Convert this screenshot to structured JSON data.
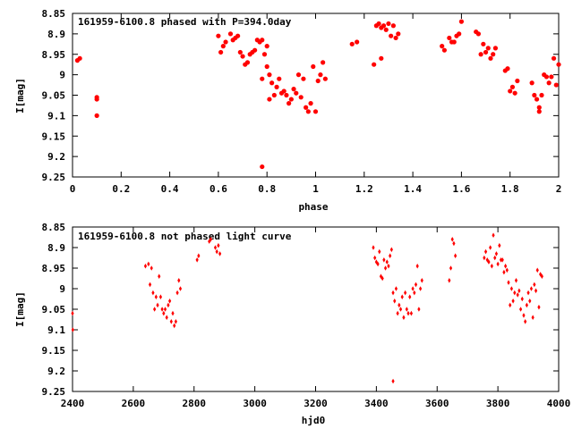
{
  "chart_data": [
    {
      "type": "scatter",
      "title": "161959-6100.8 phased with P=394.0day",
      "xlabel": "phase",
      "ylabel": "I[mag]",
      "xlim": [
        0,
        2
      ],
      "ylim": [
        9.25,
        8.85
      ],
      "y_inverted": true,
      "grid": false,
      "legend": "none",
      "marker": "filled-circle-large",
      "color": "#ff0000",
      "xticks": [
        "0",
        "0.2",
        "0.4",
        "0.6",
        "0.8",
        "1",
        "1.2",
        "1.4",
        "1.6",
        "1.8",
        "2"
      ],
      "yticks": [
        "8.85",
        "8.9",
        "8.95",
        "9",
        "9.05",
        "9.1",
        "9.15",
        "9.2",
        "9.25"
      ],
      "points": [
        [
          0.02,
          8.965
        ],
        [
          0.03,
          8.96
        ],
        [
          0.1,
          9.1
        ],
        [
          0.1,
          9.06
        ],
        [
          0.1,
          9.055
        ],
        [
          0.6,
          8.905
        ],
        [
          0.61,
          8.945
        ],
        [
          0.62,
          8.93
        ],
        [
          0.63,
          8.92
        ],
        [
          0.65,
          8.9
        ],
        [
          0.66,
          8.915
        ],
        [
          0.67,
          8.91
        ],
        [
          0.68,
          8.905
        ],
        [
          0.69,
          8.945
        ],
        [
          0.7,
          8.955
        ],
        [
          0.71,
          8.975
        ],
        [
          0.72,
          8.97
        ],
        [
          0.73,
          8.95
        ],
        [
          0.74,
          8.945
        ],
        [
          0.75,
          8.94
        ],
        [
          0.76,
          8.915
        ],
        [
          0.77,
          8.92
        ],
        [
          0.78,
          8.915
        ],
        [
          0.79,
          8.95
        ],
        [
          0.78,
          9.01
        ],
        [
          0.8,
          8.93
        ],
        [
          0.8,
          8.98
        ],
        [
          0.81,
          9.0
        ],
        [
          0.81,
          9.06
        ],
        [
          0.82,
          9.02
        ],
        [
          0.83,
          9.05
        ],
        [
          0.84,
          9.03
        ],
        [
          0.85,
          9.01
        ],
        [
          0.86,
          9.045
        ],
        [
          0.87,
          9.04
        ],
        [
          0.88,
          9.05
        ],
        [
          0.89,
          9.07
        ],
        [
          0.9,
          9.06
        ],
        [
          0.91,
          9.035
        ],
        [
          0.92,
          9.045
        ],
        [
          0.93,
          9.0
        ],
        [
          0.94,
          9.055
        ],
        [
          0.95,
          9.01
        ],
        [
          0.96,
          9.08
        ],
        [
          0.97,
          9.09
        ],
        [
          0.98,
          9.07
        ],
        [
          0.99,
          8.98
        ],
        [
          1.0,
          9.09
        ],
        [
          1.01,
          9.015
        ],
        [
          1.02,
          9.0
        ],
        [
          1.03,
          8.97
        ],
        [
          1.04,
          9.01
        ],
        [
          0.78,
          9.225
        ],
        [
          1.15,
          8.925
        ],
        [
          1.17,
          8.92
        ],
        [
          1.24,
          8.975
        ],
        [
          1.25,
          8.88
        ],
        [
          1.26,
          8.875
        ],
        [
          1.27,
          8.885
        ],
        [
          1.27,
          8.96
        ],
        [
          1.28,
          8.88
        ],
        [
          1.29,
          8.89
        ],
        [
          1.3,
          8.875
        ],
        [
          1.31,
          8.905
        ],
        [
          1.32,
          8.88
        ],
        [
          1.33,
          8.91
        ],
        [
          1.34,
          8.9
        ],
        [
          1.52,
          8.93
        ],
        [
          1.53,
          8.94
        ],
        [
          1.55,
          8.91
        ],
        [
          1.56,
          8.92
        ],
        [
          1.57,
          8.92
        ],
        [
          1.58,
          8.905
        ],
        [
          1.59,
          8.9
        ],
        [
          1.6,
          8.87
        ],
        [
          1.66,
          8.895
        ],
        [
          1.67,
          8.9
        ],
        [
          1.68,
          8.95
        ],
        [
          1.69,
          8.925
        ],
        [
          1.7,
          8.945
        ],
        [
          1.71,
          8.935
        ],
        [
          1.72,
          8.96
        ],
        [
          1.73,
          8.95
        ],
        [
          1.74,
          8.935
        ],
        [
          1.78,
          8.99
        ],
        [
          1.79,
          8.985
        ],
        [
          1.8,
          9.04
        ],
        [
          1.81,
          9.03
        ],
        [
          1.82,
          9.045
        ],
        [
          1.83,
          9.015
        ],
        [
          1.89,
          9.02
        ],
        [
          1.9,
          9.05
        ],
        [
          1.91,
          9.06
        ],
        [
          1.92,
          9.08
        ],
        [
          1.92,
          9.09
        ],
        [
          1.93,
          9.05
        ],
        [
          1.94,
          9.0
        ],
        [
          1.95,
          9.005
        ],
        [
          1.96,
          9.02
        ],
        [
          1.97,
          9.005
        ],
        [
          1.98,
          8.96
        ],
        [
          1.99,
          9.025
        ],
        [
          2.0,
          8.975
        ]
      ]
    },
    {
      "type": "scatter",
      "title": "161959-6100.8 not phased light curve",
      "xlabel": "hjd0",
      "ylabel": "I[mag]",
      "xlim": [
        2400,
        4000
      ],
      "ylim": [
        9.25,
        8.85
      ],
      "y_inverted": true,
      "grid": false,
      "legend": "none",
      "marker": "diamond-small",
      "color": "#ff0000",
      "xticks": [
        "2400",
        "2600",
        "2800",
        "3000",
        "3200",
        "3400",
        "3600",
        "3800",
        "4000"
      ],
      "yticks": [
        "8.85",
        "8.9",
        "8.95",
        "9",
        "9.05",
        "9.1",
        "9.15",
        "9.2",
        "9.25"
      ],
      "points": [
        [
          2400,
          9.06
        ],
        [
          2401,
          9.1
        ],
        [
          2640,
          8.945
        ],
        [
          2650,
          8.94
        ],
        [
          2655,
          8.99
        ],
        [
          2660,
          8.95
        ],
        [
          2665,
          9.01
        ],
        [
          2670,
          9.05
        ],
        [
          2675,
          9.02
        ],
        [
          2680,
          9.04
        ],
        [
          2685,
          8.97
        ],
        [
          2690,
          9.02
        ],
        [
          2695,
          9.05
        ],
        [
          2700,
          9.06
        ],
        [
          2705,
          9.05
        ],
        [
          2710,
          9.07
        ],
        [
          2715,
          9.04
        ],
        [
          2720,
          9.03
        ],
        [
          2725,
          9.08
        ],
        [
          2730,
          9.06
        ],
        [
          2735,
          9.09
        ],
        [
          2740,
          9.08
        ],
        [
          2745,
          9.01
        ],
        [
          2750,
          8.98
        ],
        [
          2755,
          9.0
        ],
        [
          2810,
          8.93
        ],
        [
          2815,
          8.92
        ],
        [
          2850,
          8.885
        ],
        [
          2855,
          8.88
        ],
        [
          2870,
          8.9
        ],
        [
          2875,
          8.91
        ],
        [
          2880,
          8.895
        ],
        [
          2885,
          8.915
        ],
        [
          3390,
          8.9
        ],
        [
          3395,
          8.925
        ],
        [
          3400,
          8.935
        ],
        [
          3405,
          8.94
        ],
        [
          3410,
          8.91
        ],
        [
          3415,
          8.97
        ],
        [
          3420,
          8.975
        ],
        [
          3425,
          8.93
        ],
        [
          3430,
          8.95
        ],
        [
          3435,
          8.935
        ],
        [
          3440,
          8.945
        ],
        [
          3445,
          8.92
        ],
        [
          3450,
          8.905
        ],
        [
          3455,
          9.01
        ],
        [
          3460,
          9.03
        ],
        [
          3465,
          9.0
        ],
        [
          3470,
          9.06
        ],
        [
          3475,
          9.04
        ],
        [
          3480,
          9.05
        ],
        [
          3485,
          9.02
        ],
        [
          3490,
          9.07
        ],
        [
          3495,
          9.01
        ],
        [
          3500,
          9.05
        ],
        [
          3505,
          9.06
        ],
        [
          3510,
          9.02
        ],
        [
          3515,
          9.06
        ],
        [
          3520,
          9.0
        ],
        [
          3525,
          9.01
        ],
        [
          3530,
          8.99
        ],
        [
          3535,
          8.945
        ],
        [
          3540,
          9.05
        ],
        [
          3545,
          9.0
        ],
        [
          3550,
          8.98
        ],
        [
          3455,
          9.225
        ],
        [
          3640,
          8.98
        ],
        [
          3645,
          8.95
        ],
        [
          3650,
          8.88
        ],
        [
          3655,
          8.89
        ],
        [
          3660,
          8.92
        ],
        [
          3755,
          8.925
        ],
        [
          3760,
          8.91
        ],
        [
          3765,
          8.93
        ],
        [
          3770,
          8.935
        ],
        [
          3775,
          8.9
        ],
        [
          3780,
          8.945
        ],
        [
          3785,
          8.87
        ],
        [
          3790,
          8.925
        ],
        [
          3795,
          8.915
        ],
        [
          3800,
          8.94
        ],
        [
          3805,
          8.895
        ],
        [
          3810,
          8.93
        ],
        [
          3815,
          8.93
        ],
        [
          3820,
          8.96
        ],
        [
          3825,
          8.945
        ],
        [
          3830,
          8.955
        ],
        [
          3835,
          8.985
        ],
        [
          3840,
          9.04
        ],
        [
          3845,
          9.0
        ],
        [
          3850,
          9.03
        ],
        [
          3855,
          9.01
        ],
        [
          3860,
          8.98
        ],
        [
          3865,
          9.015
        ],
        [
          3870,
          9.005
        ],
        [
          3875,
          9.05
        ],
        [
          3880,
          9.025
        ],
        [
          3885,
          9.065
        ],
        [
          3890,
          9.08
        ],
        [
          3895,
          9.04
        ],
        [
          3900,
          9.01
        ],
        [
          3905,
          9.03
        ],
        [
          3910,
          9.0
        ],
        [
          3915,
          9.07
        ],
        [
          3920,
          8.99
        ],
        [
          3925,
          9.005
        ],
        [
          3930,
          8.955
        ],
        [
          3935,
          9.045
        ],
        [
          3940,
          8.965
        ],
        [
          3945,
          8.97
        ]
      ]
    }
  ]
}
